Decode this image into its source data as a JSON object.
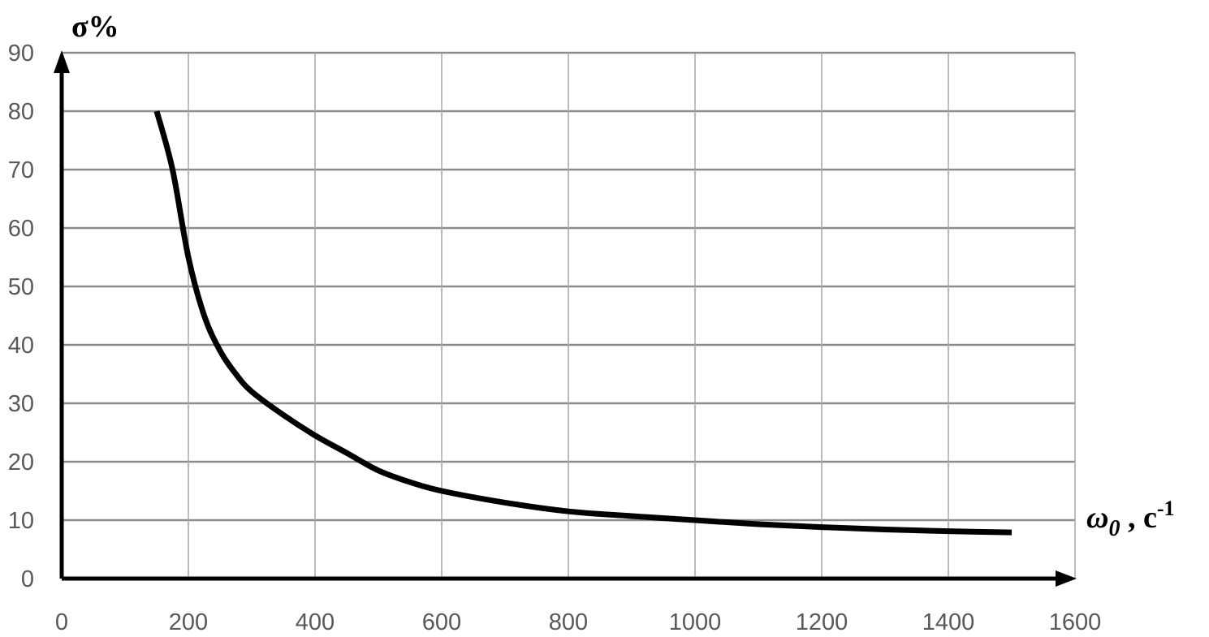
{
  "chart_data": {
    "type": "line",
    "title": "",
    "ylabel": "σ%",
    "xlabel_symbol": "ω",
    "xlabel_subscript": "0",
    "xlabel_unit": " , c",
    "xlabel_unit_sup": "-1",
    "xlim": [
      0,
      1600
    ],
    "ylim": [
      0,
      90
    ],
    "x_ticks": [
      0,
      200,
      400,
      600,
      800,
      1000,
      1200,
      1400,
      1600
    ],
    "y_ticks": [
      0,
      10,
      20,
      30,
      40,
      50,
      60,
      70,
      80,
      90
    ],
    "grid": true,
    "legend": "none",
    "line_color": "#000000",
    "series": [
      {
        "x": [
          150,
          175,
          200,
          225,
          250,
          275,
          300,
          350,
          400,
          450,
          500,
          550,
          600,
          700,
          800,
          900,
          1000,
          1100,
          1200,
          1300,
          1400,
          1500
        ],
        "y": [
          80,
          70,
          55,
          45,
          39,
          35,
          32,
          28,
          24.5,
          21.5,
          18.5,
          16.5,
          15,
          13,
          11.5,
          10.7,
          10,
          9.3,
          8.8,
          8.4,
          8.1,
          7.9
        ]
      }
    ]
  }
}
